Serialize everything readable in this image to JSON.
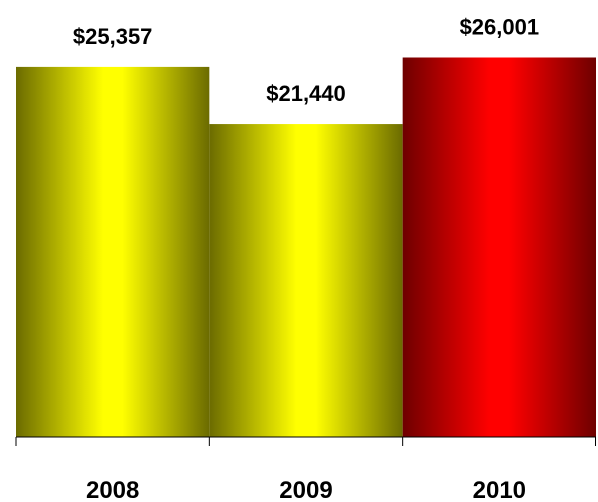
{
  "chart_data": {
    "type": "bar",
    "categories": [
      "2008",
      "2009",
      "2010"
    ],
    "values": [
      25357,
      21440,
      26001
    ],
    "data_labels": [
      "$25,357",
      "$21,440",
      "$26,001"
    ],
    "bar_colors": [
      "#ffff00",
      "#ffff00",
      "#ff0000"
    ],
    "bar_shade_colors": [
      "#6b6b00",
      "#6b6b00",
      "#6e0000"
    ],
    "ylim": [
      0,
      28000
    ],
    "grid": false,
    "legend": "none",
    "title": "",
    "xlabel": "",
    "ylabel": ""
  }
}
